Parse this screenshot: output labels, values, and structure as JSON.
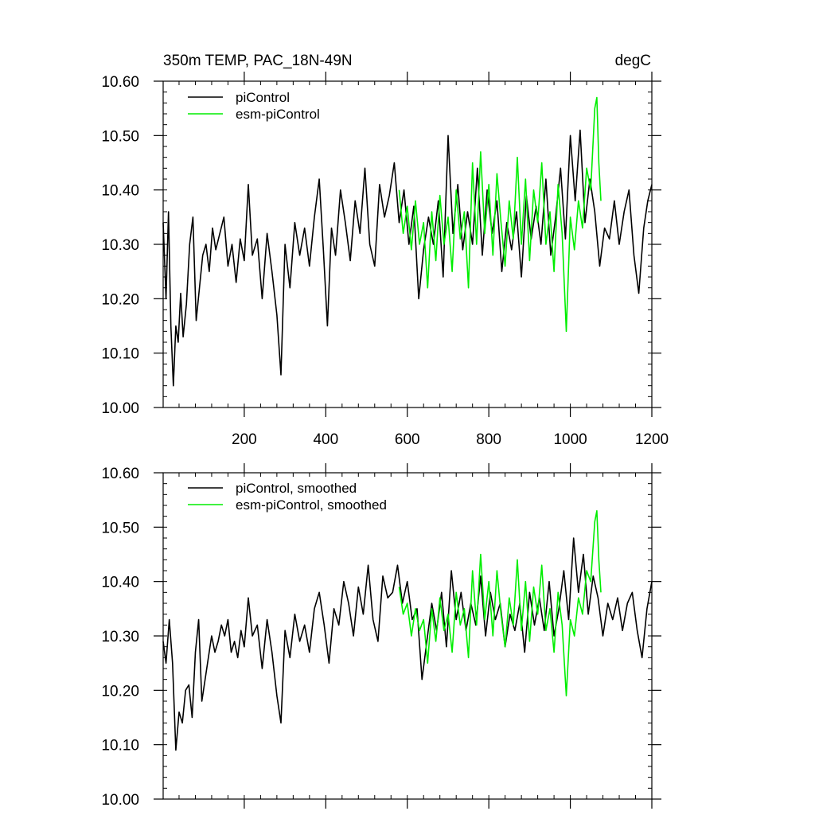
{
  "chart_data": [
    {
      "type": "line",
      "title": "350m TEMP, PAC_18N-49N",
      "units": "degC",
      "xlim": [
        1,
        1200
      ],
      "ylim": [
        10.0,
        10.6
      ],
      "x_ticks": [
        200,
        400,
        600,
        800,
        1000,
        1200
      ],
      "x_tick_labels": [
        "200",
        "400",
        "600",
        "800",
        "1000",
        "1200"
      ],
      "y_ticks": [
        10.0,
        10.1,
        10.2,
        10.3,
        10.4,
        10.5,
        10.6
      ],
      "y_tick_labels": [
        "10.00",
        "10.10",
        "10.20",
        "10.30",
        "10.40",
        "10.50",
        "10.60"
      ],
      "legend_position": "top-left",
      "series": [
        {
          "name": "piControl",
          "color": "#000000",
          "x": [
            1,
            8,
            14,
            20,
            26,
            32,
            38,
            44,
            50,
            58,
            66,
            74,
            82,
            90,
            98,
            106,
            114,
            122,
            130,
            140,
            150,
            160,
            170,
            180,
            190,
            200,
            210,
            220,
            232,
            244,
            256,
            268,
            280,
            290,
            300,
            312,
            324,
            336,
            348,
            360,
            372,
            384,
            394,
            404,
            414,
            424,
            436,
            448,
            460,
            472,
            484,
            496,
            508,
            520,
            532,
            544,
            556,
            568,
            580,
            592,
            604,
            616,
            628,
            640,
            652,
            664,
            676,
            688,
            700,
            712,
            724,
            736,
            748,
            760,
            772,
            784,
            796,
            808,
            820,
            832,
            844,
            856,
            868,
            880,
            892,
            904,
            916,
            928,
            940,
            952,
            964,
            976,
            988,
            1000,
            1012,
            1024,
            1036,
            1048,
            1060,
            1072,
            1084,
            1096,
            1108,
            1120,
            1132,
            1144,
            1156,
            1168,
            1180,
            1190,
            1200
          ],
          "y": [
            10.34,
            10.2,
            10.36,
            10.15,
            10.04,
            10.15,
            10.12,
            10.21,
            10.13,
            10.19,
            10.3,
            10.35,
            10.16,
            10.22,
            10.28,
            10.3,
            10.25,
            10.33,
            10.29,
            10.32,
            10.35,
            10.26,
            10.3,
            10.23,
            10.31,
            10.27,
            10.41,
            10.28,
            10.31,
            10.2,
            10.32,
            10.25,
            10.17,
            10.06,
            10.3,
            10.22,
            10.34,
            10.28,
            10.33,
            10.26,
            10.35,
            10.42,
            10.29,
            10.15,
            10.33,
            10.28,
            10.4,
            10.34,
            10.27,
            10.38,
            10.32,
            10.44,
            10.3,
            10.26,
            10.41,
            10.35,
            10.39,
            10.45,
            10.34,
            10.4,
            10.3,
            10.37,
            10.2,
            10.29,
            10.35,
            10.3,
            10.38,
            10.24,
            10.5,
            10.32,
            10.41,
            10.29,
            10.36,
            10.3,
            10.44,
            10.28,
            10.4,
            10.32,
            10.38,
            10.25,
            10.34,
            10.29,
            10.36,
            10.24,
            10.39,
            10.31,
            10.37,
            10.3,
            10.42,
            10.28,
            10.35,
            10.44,
            10.31,
            10.5,
            10.38,
            10.51,
            10.34,
            10.42,
            10.36,
            10.26,
            10.33,
            10.31,
            10.38,
            10.3,
            10.36,
            10.4,
            10.28,
            10.21,
            10.33,
            10.38,
            10.41
          ]
        },
        {
          "name": "esm-piControl",
          "color": "#00ee00",
          "x": [
            580,
            590,
            600,
            610,
            620,
            630,
            640,
            650,
            660,
            670,
            680,
            690,
            700,
            710,
            720,
            730,
            740,
            750,
            760,
            770,
            780,
            790,
            800,
            810,
            820,
            830,
            840,
            850,
            860,
            870,
            880,
            890,
            900,
            910,
            920,
            930,
            940,
            950,
            960,
            970,
            980,
            990,
            1000,
            1010,
            1020,
            1030,
            1040,
            1050,
            1060,
            1065,
            1070,
            1075
          ],
          "y": [
            10.4,
            10.32,
            10.37,
            10.29,
            10.38,
            10.3,
            10.34,
            10.22,
            10.36,
            10.27,
            10.39,
            10.3,
            10.35,
            10.25,
            10.4,
            10.31,
            10.36,
            10.22,
            10.45,
            10.3,
            10.47,
            10.32,
            10.41,
            10.28,
            10.43,
            10.34,
            10.26,
            10.38,
            10.31,
            10.46,
            10.3,
            10.42,
            10.27,
            10.4,
            10.34,
            10.45,
            10.3,
            10.36,
            10.25,
            10.41,
            10.32,
            10.14,
            10.35,
            10.29,
            10.38,
            10.33,
            10.44,
            10.4,
            10.55,
            10.57,
            10.45,
            10.38
          ]
        }
      ]
    },
    {
      "type": "line",
      "title": "",
      "units": "",
      "xlim": [
        1,
        1200
      ],
      "ylim": [
        10.0,
        10.6
      ],
      "x_ticks": [
        200,
        400,
        600,
        800,
        1000,
        1200
      ],
      "x_tick_labels": [],
      "y_ticks": [
        10.0,
        10.1,
        10.2,
        10.3,
        10.4,
        10.5,
        10.6
      ],
      "y_tick_labels": [
        "10.00",
        "10.10",
        "10.20",
        "10.30",
        "10.40",
        "10.50",
        "10.60"
      ],
      "legend_position": "top-left",
      "series": [
        {
          "name": "piControl, smoothed",
          "color": "#000000",
          "x": [
            1,
            8,
            16,
            24,
            32,
            40,
            48,
            56,
            64,
            72,
            80,
            88,
            96,
            104,
            112,
            120,
            128,
            136,
            144,
            152,
            160,
            168,
            176,
            184,
            192,
            200,
            210,
            220,
            232,
            244,
            256,
            268,
            280,
            290,
            300,
            312,
            324,
            336,
            348,
            360,
            372,
            384,
            396,
            408,
            420,
            432,
            444,
            456,
            468,
            480,
            492,
            504,
            516,
            528,
            540,
            552,
            564,
            576,
            588,
            600,
            612,
            624,
            636,
            648,
            660,
            672,
            684,
            696,
            708,
            720,
            732,
            744,
            756,
            768,
            780,
            792,
            804,
            816,
            828,
            840,
            852,
            864,
            876,
            888,
            900,
            912,
            924,
            936,
            948,
            960,
            972,
            984,
            996,
            1008,
            1020,
            1032,
            1044,
            1056,
            1068,
            1080,
            1092,
            1104,
            1116,
            1128,
            1140,
            1152,
            1164,
            1176,
            1188,
            1200
          ],
          "y": [
            10.29,
            10.25,
            10.33,
            10.25,
            10.09,
            10.16,
            10.14,
            10.2,
            10.21,
            10.15,
            10.27,
            10.33,
            10.18,
            10.22,
            10.26,
            10.3,
            10.27,
            10.29,
            10.32,
            10.3,
            10.33,
            10.27,
            10.29,
            10.26,
            10.31,
            10.28,
            10.37,
            10.3,
            10.32,
            10.24,
            10.33,
            10.27,
            10.19,
            10.14,
            10.31,
            10.26,
            10.34,
            10.29,
            10.32,
            10.27,
            10.35,
            10.38,
            10.32,
            10.25,
            10.35,
            10.32,
            10.4,
            10.36,
            10.3,
            10.39,
            10.34,
            10.43,
            10.33,
            10.29,
            10.41,
            10.37,
            10.38,
            10.43,
            10.36,
            10.4,
            10.33,
            10.35,
            10.22,
            10.29,
            10.36,
            10.31,
            10.38,
            10.28,
            10.42,
            10.33,
            10.38,
            10.31,
            10.36,
            10.32,
            10.41,
            10.3,
            10.38,
            10.33,
            10.36,
            10.28,
            10.34,
            10.31,
            10.36,
            10.27,
            10.38,
            10.32,
            10.37,
            10.31,
            10.4,
            10.3,
            10.35,
            10.42,
            10.33,
            10.48,
            10.38,
            10.45,
            10.34,
            10.41,
            10.37,
            10.3,
            10.36,
            10.33,
            10.37,
            10.31,
            10.36,
            10.38,
            10.31,
            10.26,
            10.35,
            10.4
          ]
        },
        {
          "name": "esm-piControl, smoothed",
          "color": "#00ee00",
          "x": [
            580,
            590,
            600,
            610,
            620,
            630,
            640,
            650,
            660,
            670,
            680,
            690,
            700,
            710,
            720,
            730,
            740,
            750,
            760,
            770,
            780,
            790,
            800,
            810,
            820,
            830,
            840,
            850,
            860,
            870,
            880,
            890,
            900,
            910,
            920,
            930,
            940,
            950,
            960,
            970,
            980,
            990,
            1000,
            1010,
            1020,
            1030,
            1040,
            1050,
            1060,
            1065,
            1070,
            1075
          ],
          "y": [
            10.39,
            10.34,
            10.36,
            10.3,
            10.35,
            10.31,
            10.33,
            10.25,
            10.35,
            10.29,
            10.37,
            10.31,
            10.34,
            10.27,
            10.38,
            10.32,
            10.35,
            10.26,
            10.42,
            10.32,
            10.45,
            10.33,
            10.4,
            10.3,
            10.42,
            10.34,
            10.28,
            10.37,
            10.32,
            10.44,
            10.31,
            10.4,
            10.29,
            10.39,
            10.34,
            10.43,
            10.31,
            10.35,
            10.27,
            10.38,
            10.32,
            10.19,
            10.33,
            10.3,
            10.37,
            10.34,
            10.42,
            10.4,
            10.51,
            10.53,
            10.44,
            10.38
          ]
        }
      ]
    }
  ]
}
